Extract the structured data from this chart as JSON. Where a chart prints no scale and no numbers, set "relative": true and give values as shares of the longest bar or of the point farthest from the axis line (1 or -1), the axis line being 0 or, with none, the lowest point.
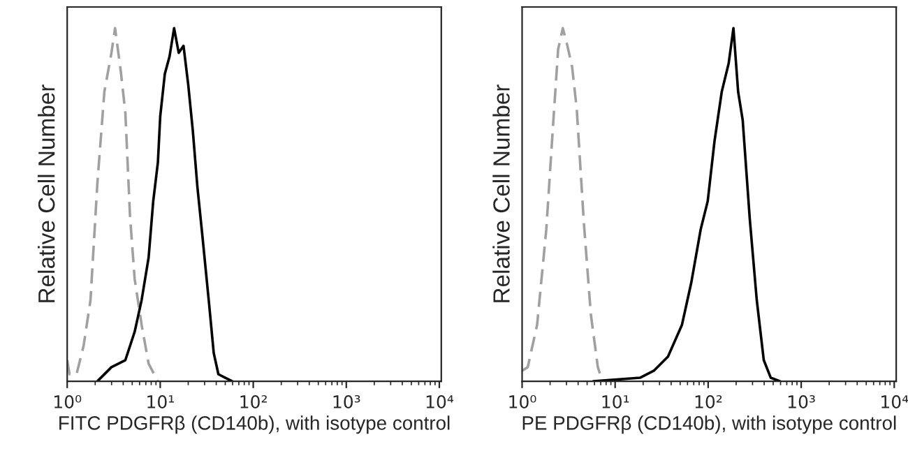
{
  "chart_data": [
    {
      "type": "line",
      "relative": true,
      "log": "x",
      "xlabel": "FITC PDGFRβ (CD140b), with isotype control",
      "ylabel": "Relative Cell Number",
      "xlim": [
        1,
        10500
      ],
      "xticks": [
        {
          "value": 1,
          "label": "10⁰"
        },
        {
          "value": 10,
          "label": "10¹"
        },
        {
          "value": 100,
          "label": "10²"
        },
        {
          "value": 1000,
          "label": "10³"
        },
        {
          "value": 10000,
          "label": "10⁴"
        }
      ],
      "tick_labels": "x",
      "grid": false,
      "series": [
        {
          "color": "#a0a0a0",
          "line_style": "dashed",
          "x": [
            1.0,
            1.06,
            1.26,
            1.5,
            1.78,
            2.11,
            2.51,
            2.99,
            3.27,
            3.76,
            4.22,
            4.73,
            5.31,
            6.31,
            7.5,
            9.44
          ],
          "values": [
            0.06,
            0.02,
            0.02,
            0.1,
            0.23,
            0.56,
            0.82,
            0.93,
            1.0,
            0.88,
            0.76,
            0.47,
            0.29,
            0.16,
            0.05,
            0.0
          ]
        },
        {
          "color": "#000000",
          "line_style": "solid",
          "x": [
            2.11,
            2.99,
            4.22,
            5.31,
            6.31,
            7.5,
            8.41,
            9.44,
            10,
            11.2,
            12.6,
            14.1,
            15.8,
            17.8,
            20.0,
            22.4,
            25.1,
            28.2,
            33.5,
            37.6,
            42.2,
            50.1,
            59.6
          ],
          "values": [
            0.0,
            0.04,
            0.06,
            0.14,
            0.23,
            0.35,
            0.51,
            0.62,
            0.75,
            0.87,
            0.92,
            1.0,
            0.93,
            0.95,
            0.84,
            0.71,
            0.55,
            0.42,
            0.22,
            0.08,
            0.02,
            0.01,
            0.0
          ]
        }
      ]
    },
    {
      "type": "line",
      "relative": true,
      "log": "x",
      "xlabel": "PE PDGFRβ (CD140b), with isotype control",
      "ylabel": "Relative Cell Number",
      "xlim": [
        1,
        10500
      ],
      "xticks": [
        {
          "value": 1,
          "label": "10⁰"
        },
        {
          "value": 10,
          "label": "10¹"
        },
        {
          "value": 100,
          "label": "10²"
        },
        {
          "value": 1000,
          "label": "10³"
        },
        {
          "value": 10000,
          "label": "10⁴"
        }
      ],
      "tick_labels": "x",
      "grid": false,
      "series": [
        {
          "color": "#a0a0a0",
          "line_style": "dashed",
          "x": [
            1.0,
            1.15,
            1.45,
            1.82,
            2.17,
            2.44,
            2.74,
            3.07,
            3.45,
            3.87,
            4.61,
            5.48,
            6.52,
            7.31
          ],
          "values": [
            0.03,
            0.04,
            0.16,
            0.43,
            0.74,
            0.94,
            1.0,
            0.95,
            0.89,
            0.77,
            0.45,
            0.19,
            0.04,
            0.0
          ]
        },
        {
          "color": "#000000",
          "line_style": "solid",
          "x": [
            5.81,
            18.5,
            26.1,
            37.0,
            52.3,
            65.9,
            83.1,
            98.9,
            117,
            140,
            166,
            187,
            210,
            235,
            280,
            333,
            396,
            471,
            594
          ],
          "values": [
            0.0,
            0.01,
            0.03,
            0.07,
            0.16,
            0.28,
            0.43,
            0.51,
            0.68,
            0.82,
            0.9,
            1.0,
            0.82,
            0.74,
            0.46,
            0.23,
            0.06,
            0.01,
            0.0
          ]
        }
      ]
    }
  ]
}
